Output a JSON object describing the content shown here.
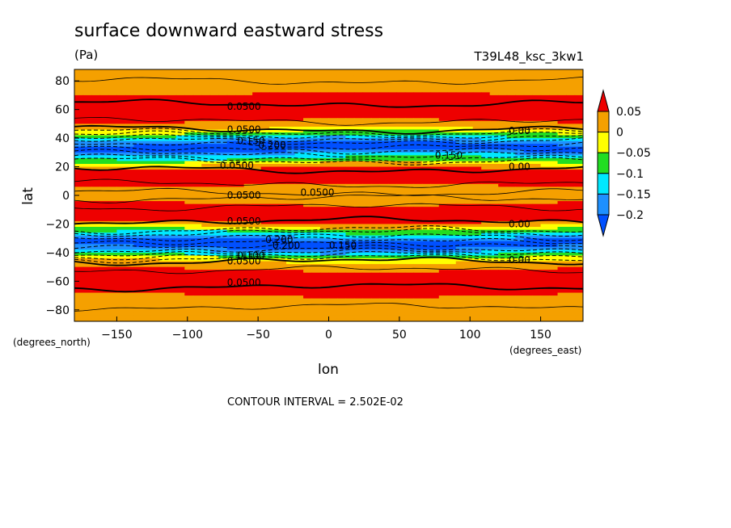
{
  "chart_data": {
    "type": "heatmap",
    "title": "surface downward eastward stress",
    "units": "(Pa)",
    "run_label": "T39L48_ksc_3kw1",
    "xlabel": "lon",
    "ylabel": "lat",
    "x_units": "(degrees_east)",
    "y_units": "(degrees_north)",
    "xlim": [
      -180,
      180
    ],
    "ylim": [
      -88,
      88
    ],
    "x_ticks": [
      -150,
      -100,
      -50,
      0,
      50,
      100,
      150
    ],
    "y_ticks": [
      80,
      60,
      40,
      20,
      0,
      -20,
      -40,
      -60,
      -80
    ],
    "contour_interval_text": "CONTOUR INTERVAL = 2.502E-02",
    "colorbar": {
      "labels": [
        "0.05",
        "0",
        "−0.05",
        "−0.1",
        "−0.15",
        "−0.2"
      ],
      "levels": [
        0.05,
        0.0,
        -0.05,
        -0.1,
        -0.15,
        -0.2
      ],
      "colors": {
        "above_0.05": "#ee0000",
        "0_to_0.05": "#f5a000",
        "-0.05_to_0": "#ffff00",
        "-0.1_to_-0.05": "#22dd22",
        "-0.15_to_-0.1": "#00e8ff",
        "-0.2_to_-0.15": "#1e90ff",
        "below_-0.2": "#0050ff"
      }
    },
    "zonal_profile_estimate": {
      "lat": [
        88,
        80,
        72,
        64,
        56,
        48,
        44,
        40,
        36,
        32,
        28,
        24,
        20,
        16,
        10,
        4,
        0,
        -4,
        -10,
        -16,
        -20,
        -24,
        -28,
        -32,
        -36,
        -40,
        -44,
        -48,
        -56,
        -64,
        -72,
        -80,
        -88
      ],
      "stress": [
        0.04,
        0.03,
        0.045,
        0.08,
        0.07,
        0.03,
        -0.05,
        -0.12,
        -0.2,
        -0.21,
        -0.12,
        -0.05,
        0.04,
        0.07,
        0.07,
        0.03,
        0.05,
        0.04,
        0.07,
        0.07,
        0.04,
        -0.05,
        -0.12,
        -0.21,
        -0.2,
        -0.12,
        -0.04,
        0.03,
        0.07,
        0.08,
        0.04,
        0.03,
        0.03
      ]
    },
    "contour_labels": [
      "0.0500",
      "0.0500",
      "0.0500",
      "0.0500",
      "0.0500",
      "0.0500",
      "0.0500",
      "0.0500",
      "0.00",
      "0.00",
      "0.00",
      "0.00",
      "0.150",
      "0.150",
      "0.150",
      "0.200",
      "0.200",
      "0.200",
      "0.100"
    ]
  }
}
